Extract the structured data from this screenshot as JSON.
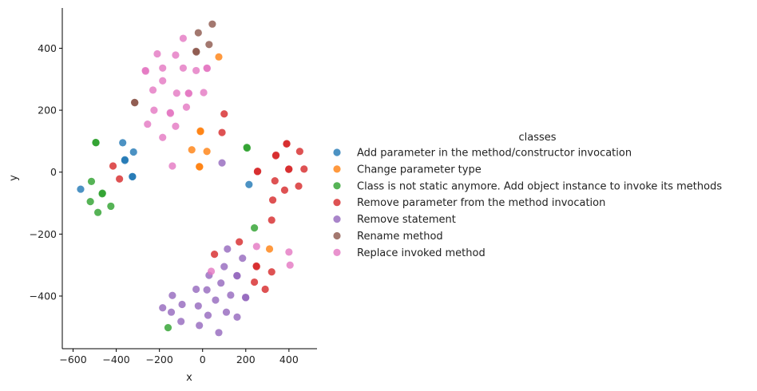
{
  "chart_data": {
    "type": "scatter",
    "title": "",
    "xlabel": "x",
    "ylabel": "y",
    "xlim": [
      -650,
      530
    ],
    "ylim": [
      -570,
      530
    ],
    "xticks": [
      -600,
      -400,
      -200,
      0,
      200,
      400
    ],
    "yticks": [
      -400,
      -200,
      0,
      200,
      400
    ],
    "xtick_labels": [
      "−600",
      "−400",
      "−200",
      "0",
      "200",
      "400"
    ],
    "ytick_labels": [
      "−400",
      "−200",
      "0",
      "200",
      "400"
    ],
    "grid": false,
    "legend": {
      "title": "classes",
      "placement": "right"
    },
    "series": [
      {
        "name": "Add parameter in the method/constructor invocation",
        "color": "#1f77b4",
        "points": [
          [
            -565,
            -55
          ],
          [
            -370,
            95
          ],
          [
            -360,
            40
          ],
          [
            -360,
            38
          ],
          [
            -320,
            65
          ],
          [
            -325,
            -15
          ],
          [
            -325,
            -14
          ],
          [
            215,
            -40
          ]
        ]
      },
      {
        "name": "Change parameter type",
        "color": "#ff7f0e",
        "points": [
          [
            75,
            372
          ],
          [
            -10,
            133
          ],
          [
            -10,
            131
          ],
          [
            -50,
            72
          ],
          [
            20,
            67
          ],
          [
            -15,
            18
          ],
          [
            -14,
            17
          ],
          [
            310,
            -248
          ]
        ]
      },
      {
        "name": "Class is not static anymore. Add object instance to invoke its methods",
        "color": "#2ca02c",
        "points": [
          [
            -495,
            96
          ],
          [
            -494,
            95
          ],
          [
            -515,
            -30
          ],
          [
            -465,
            -70
          ],
          [
            -464,
            -68
          ],
          [
            -520,
            -95
          ],
          [
            -485,
            -130
          ],
          [
            -425,
            -110
          ],
          [
            205,
            80
          ],
          [
            206,
            78
          ],
          [
            240,
            -180
          ],
          [
            -160,
            -502
          ]
        ]
      },
      {
        "name": "Remove parameter from the method invocation",
        "color": "#d62728",
        "points": [
          [
            100,
            188
          ],
          [
            90,
            128
          ],
          [
            -415,
            20
          ],
          [
            -385,
            -22
          ],
          [
            255,
            3
          ],
          [
            254,
            2
          ],
          [
            340,
            55
          ],
          [
            339,
            53
          ],
          [
            390,
            92
          ],
          [
            389,
            91
          ],
          [
            450,
            67
          ],
          [
            400,
            10
          ],
          [
            399,
            9
          ],
          [
            470,
            10
          ],
          [
            335,
            -28
          ],
          [
            380,
            -58
          ],
          [
            445,
            -45
          ],
          [
            325,
            -90
          ],
          [
            320,
            -155
          ],
          [
            170,
            -225
          ],
          [
            55,
            -265
          ],
          [
            250,
            -305
          ],
          [
            249,
            -303
          ],
          [
            240,
            -355
          ],
          [
            320,
            -322
          ],
          [
            290,
            -378
          ]
        ]
      },
      {
        "name": "Remove statement",
        "color": "#9467bd",
        "points": [
          [
            90,
            30
          ],
          [
            115,
            -248
          ],
          [
            185,
            -278
          ],
          [
            100,
            -305
          ],
          [
            160,
            -335
          ],
          [
            159,
            -334
          ],
          [
            30,
            -333
          ],
          [
            -30,
            -378
          ],
          [
            20,
            -380
          ],
          [
            85,
            -358
          ],
          [
            130,
            -397
          ],
          [
            200,
            -405
          ],
          [
            199,
            -404
          ],
          [
            -140,
            -398
          ],
          [
            -95,
            -427
          ],
          [
            -185,
            -438
          ],
          [
            -20,
            -432
          ],
          [
            60,
            -413
          ],
          [
            -145,
            -452
          ],
          [
            25,
            -462
          ],
          [
            110,
            -452
          ],
          [
            160,
            -468
          ],
          [
            -100,
            -482
          ],
          [
            -15,
            -495
          ],
          [
            75,
            -518
          ]
        ]
      },
      {
        "name": "Rename method",
        "color": "#8c564b",
        "points": [
          [
            45,
            478
          ],
          [
            -20,
            450
          ],
          [
            30,
            412
          ],
          [
            -30,
            390
          ],
          [
            -29,
            388
          ],
          [
            -315,
            225
          ],
          [
            -314,
            224
          ]
        ]
      },
      {
        "name": "Replace invoked method",
        "color": "#e377c2",
        "points": [
          [
            -90,
            432
          ],
          [
            -210,
            382
          ],
          [
            -125,
            378
          ],
          [
            -265,
            328
          ],
          [
            -264,
            326
          ],
          [
            -185,
            336
          ],
          [
            -90,
            336
          ],
          [
            20,
            336
          ],
          [
            21,
            335
          ],
          [
            -30,
            328
          ],
          [
            -185,
            295
          ],
          [
            -230,
            265
          ],
          [
            -120,
            255
          ],
          [
            -65,
            255
          ],
          [
            -64,
            254
          ],
          [
            5,
            257
          ],
          [
            -225,
            200
          ],
          [
            -150,
            192
          ],
          [
            -149,
            190
          ],
          [
            -75,
            210
          ],
          [
            -255,
            155
          ],
          [
            -125,
            148
          ],
          [
            -185,
            112
          ],
          [
            -140,
            20
          ],
          [
            250,
            -240
          ],
          [
            400,
            -258
          ],
          [
            405,
            -300
          ],
          [
            40,
            -320
          ]
        ]
      }
    ]
  }
}
